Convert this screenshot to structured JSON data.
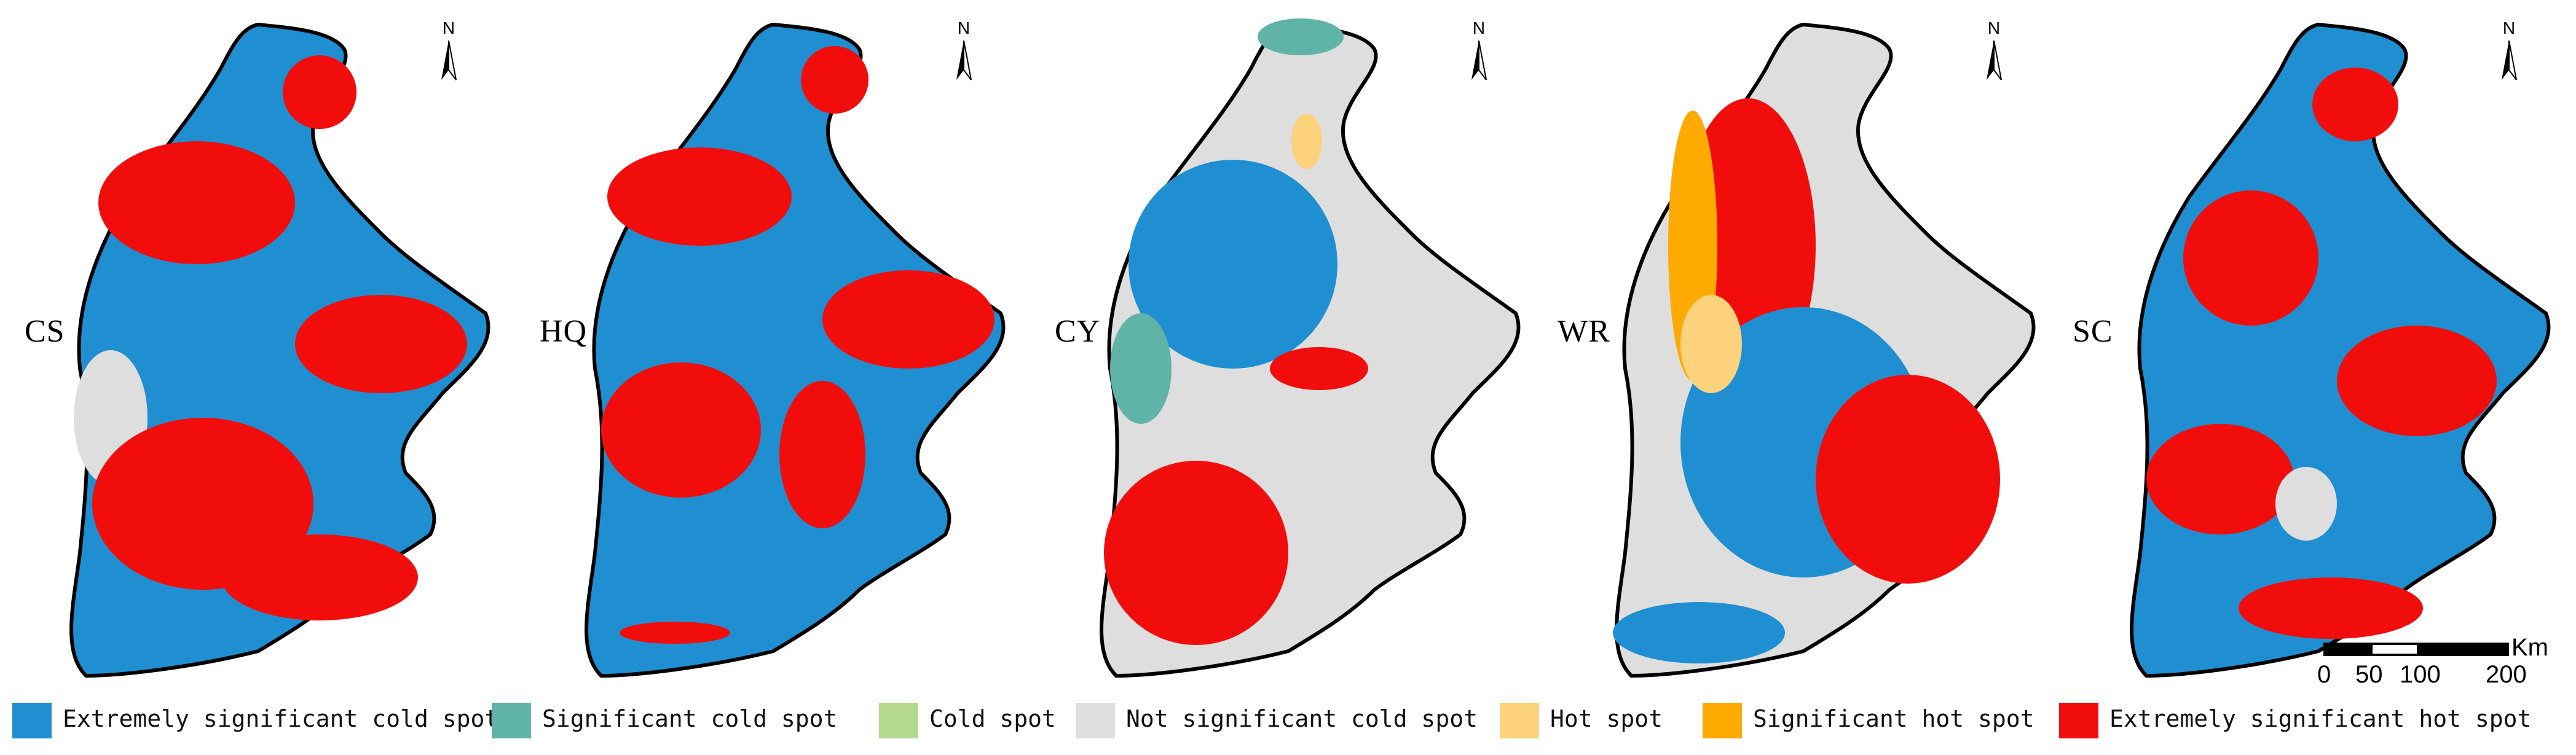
{
  "panels": [
    {
      "label": "CS",
      "base": "Extremely significant cold spot",
      "patches": [
        "Extremely significant hot spot",
        "Extremely significant hot spot",
        "Extremely significant hot spot",
        "Not significant cold spot",
        "Extremely significant hot spot",
        "Extremely significant hot spot"
      ]
    },
    {
      "label": "HQ",
      "base": "Extremely significant cold spot",
      "patches": [
        "Extremely significant hot spot",
        "Extremely significant hot spot",
        "Extremely significant hot spot",
        "Extremely significant hot spot",
        "Extremely significant hot spot",
        "Extremely significant hot spot"
      ]
    },
    {
      "label": "CY",
      "base": "Not significant cold spot",
      "patches": [
        "Extremely significant cold spot",
        "Significant cold spot",
        "Extremely significant hot spot",
        "Extremely significant hot spot",
        "Hot spot",
        "Significant cold spot"
      ]
    },
    {
      "label": "WR",
      "base": "Not significant cold spot",
      "patches": [
        "Extremely significant hot spot",
        "Extremely significant cold spot",
        "Extremely significant hot spot",
        "Significant hot spot",
        "Hot spot",
        "Extremely significant cold spot"
      ]
    },
    {
      "label": "SC",
      "base": "Extremely significant cold spot",
      "patches": [
        "Extremely significant hot spot",
        "Extremely significant hot spot",
        "Extremely significant hot spot",
        "Extremely significant hot spot",
        "Not significant cold spot",
        "Extremely significant hot spot"
      ]
    }
  ],
  "north_arrow": {
    "letter": "N"
  },
  "legend": [
    {
      "label": "Extremely significant cold spot",
      "color": "#1f8fd1"
    },
    {
      "label": "Significant cold spot",
      "color": "#5fb3a7"
    },
    {
      "label": "Cold spot",
      "color": "#b5d88f"
    },
    {
      "label": "Not significant cold spot",
      "color": "#dedede"
    },
    {
      "label": "Hot spot",
      "color": "#fdd27d"
    },
    {
      "label": "Significant hot spot",
      "color": "#ffaa00"
    },
    {
      "label": "Extremely significant hot spot",
      "color": "#f20d0d"
    }
  ],
  "scale_bar": {
    "unit": "Km",
    "ticks": [
      "0",
      "50",
      "100",
      "200"
    ]
  }
}
